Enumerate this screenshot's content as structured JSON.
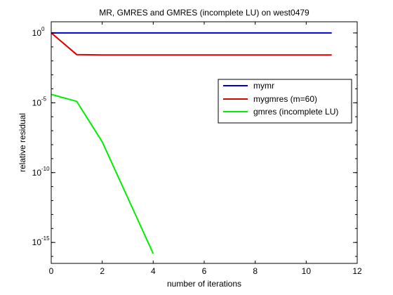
{
  "chart_data": {
    "type": "line",
    "title": "MR, GMRES and GMRES (incomplete LU) on west0479",
    "xlabel": "number of iterations",
    "ylabel": "relative residual",
    "xlim": [
      0,
      12
    ],
    "ylim_log10": [
      -16.5,
      0.8
    ],
    "yscale": "log",
    "grid": false,
    "legend_position": "right-upper",
    "x_ticks": [
      "0",
      "2",
      "4",
      "6",
      "8",
      "10",
      "12"
    ],
    "x_tick_values": [
      0,
      2,
      4,
      6,
      8,
      10,
      12
    ],
    "y_ticks": [
      {
        "base": "10",
        "exp": "0",
        "log10": 0
      },
      {
        "base": "10",
        "exp": "-5",
        "log10": -5
      },
      {
        "base": "10",
        "exp": "-10",
        "log10": -10
      },
      {
        "base": "10",
        "exp": "-15",
        "log10": -15
      }
    ],
    "series": [
      {
        "name": "mymr",
        "color": "#0000cc",
        "x": [
          0,
          1,
          2,
          3,
          4,
          5,
          6,
          7,
          8,
          9,
          10,
          11
        ],
        "y_log10": [
          0,
          0,
          0,
          0,
          0,
          0,
          0,
          0,
          0,
          0,
          0,
          0
        ]
      },
      {
        "name": "mygmres (m=60)",
        "color": "#dd0000",
        "x": [
          0,
          1,
          2,
          3,
          4,
          5,
          6,
          7,
          8,
          9,
          10,
          11
        ],
        "y_log10": [
          0,
          -1.55,
          -1.58,
          -1.58,
          -1.58,
          -1.58,
          -1.58,
          -1.58,
          -1.58,
          -1.58,
          -1.58,
          -1.58
        ]
      },
      {
        "name": "gmres (incomplete LU)",
        "color": "#00ee00",
        "x": [
          0,
          1,
          2,
          3,
          4
        ],
        "y_log10": [
          -4.4,
          -4.9,
          -7.8,
          -11.8,
          -15.8
        ]
      }
    ]
  }
}
